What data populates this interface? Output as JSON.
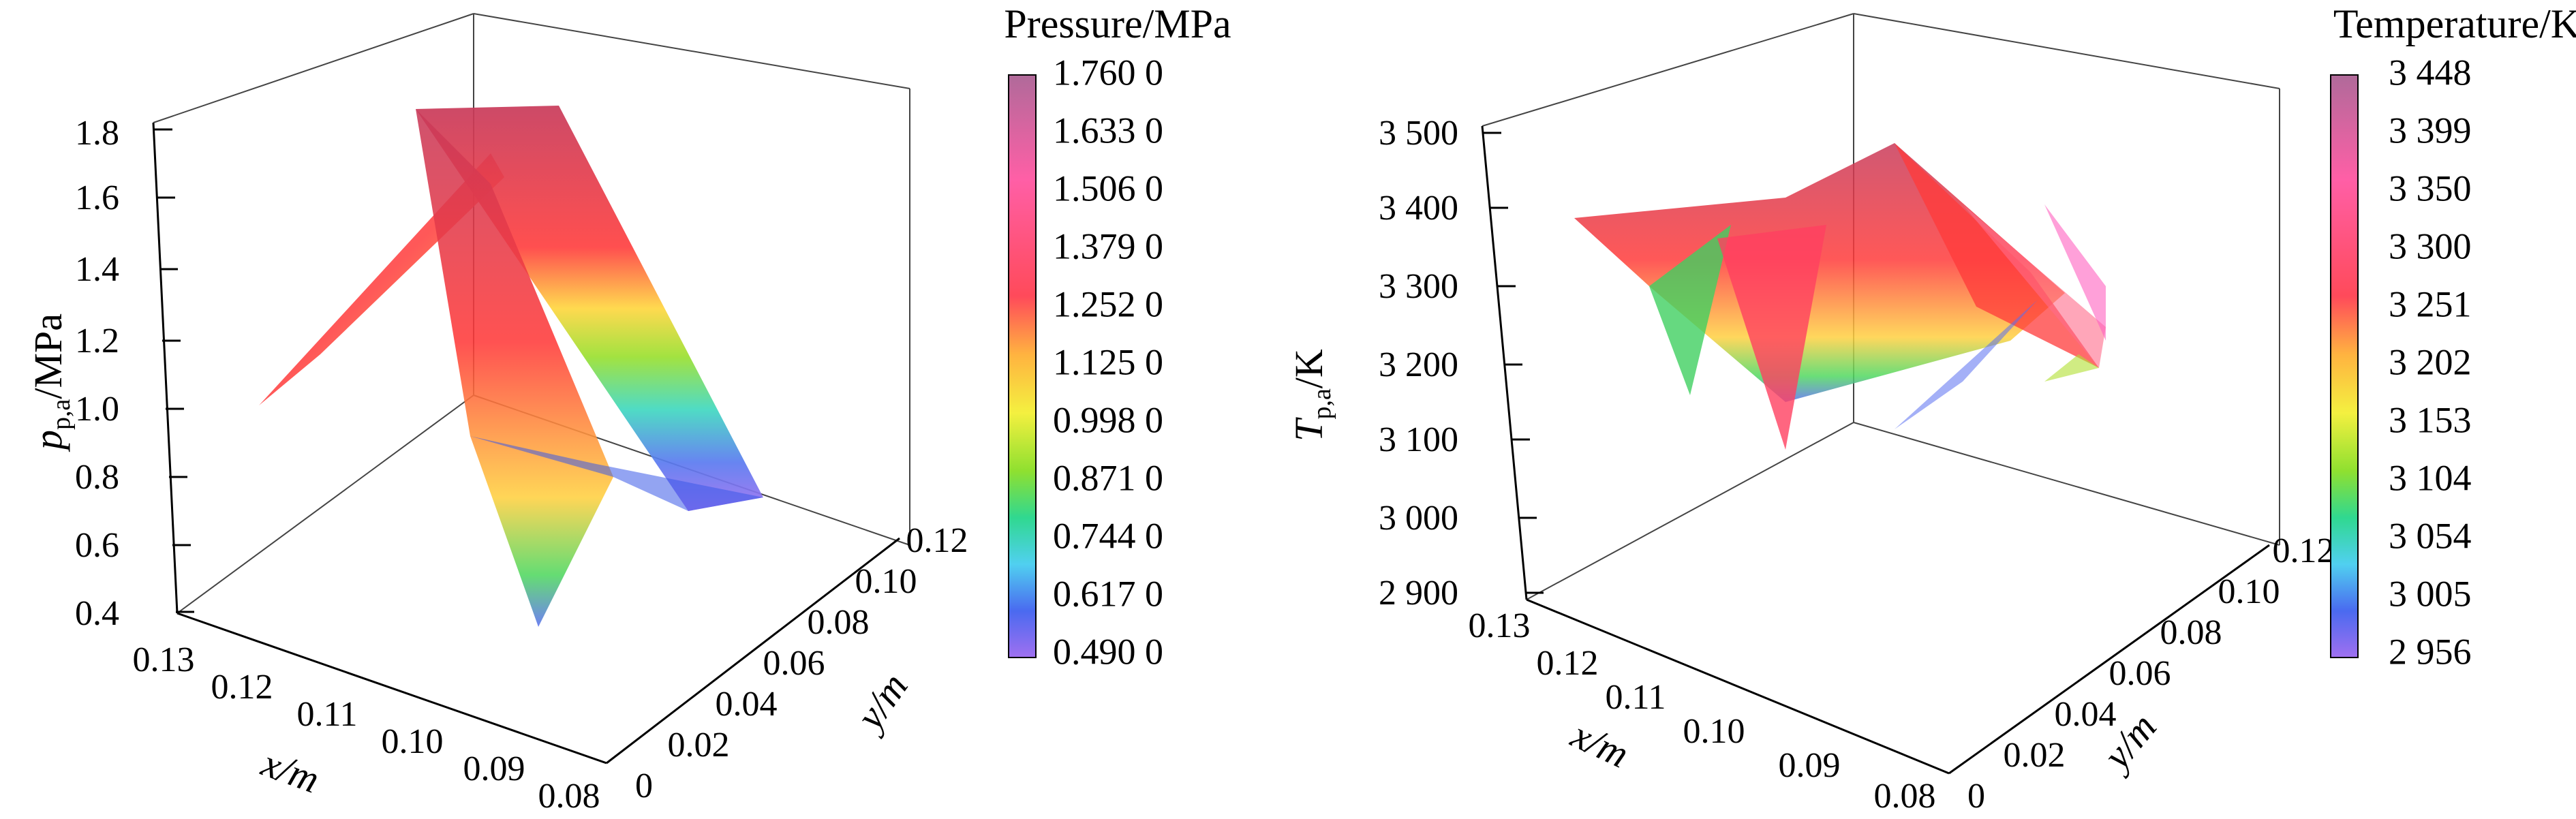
{
  "chart_data": [
    {
      "type": "surface3d",
      "zlabel_main": "p",
      "zlabel_sub": "p,a",
      "zlabel_unit": "/MPa",
      "xlabel": "x/m",
      "ylabel": "y/m",
      "z_ticks": [
        "0.4",
        "0.6",
        "0.8",
        "1.0",
        "1.2",
        "1.4",
        "1.6",
        "1.8"
      ],
      "x_ticks": [
        "0.13",
        "0.12",
        "0.11",
        "0.10",
        "0.09",
        "0.08"
      ],
      "y_ticks": [
        "0",
        "0.02",
        "0.04",
        "0.06",
        "0.08",
        "0.10",
        "0.12"
      ],
      "colorbar": {
        "title": "Pressure/MPa",
        "ticks": [
          "1.760 0",
          "1.633 0",
          "1.506 0",
          "1.379 0",
          "1.252 0",
          "1.125 0",
          "0.998 0",
          "0.871 0",
          "0.744 0",
          "0.617 0",
          "0.490 0"
        ]
      }
    },
    {
      "type": "surface3d",
      "zlabel_main": "T",
      "zlabel_sub": "p,a",
      "zlabel_unit": "/K",
      "xlabel": "x/m",
      "ylabel": "y/m",
      "z_ticks": [
        "2 900",
        "3 000",
        "3 100",
        "3 200",
        "3 300",
        "3 400",
        "3 500"
      ],
      "x_ticks": [
        "0.13",
        "0.12",
        "0.11",
        "0.10",
        "0.09",
        "0.08"
      ],
      "y_ticks": [
        "0",
        "0.02",
        "0.04",
        "0.06",
        "0.08",
        "0.10",
        "0.12"
      ],
      "colorbar": {
        "title": "Temperature/K",
        "ticks": [
          "3 448",
          "3 399",
          "3 350",
          "3 300",
          "3 251",
          "3 202",
          "3 153",
          "3 104",
          "3 054",
          "3 005",
          "2 956"
        ]
      }
    }
  ]
}
